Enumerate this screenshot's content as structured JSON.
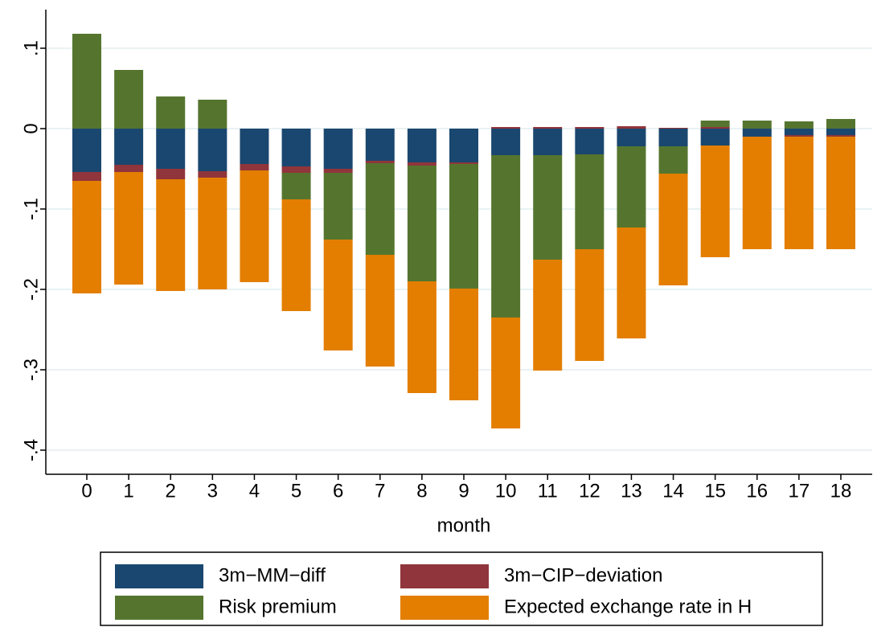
{
  "chart_data": {
    "type": "stacked_bar",
    "x_label": "month",
    "categories": [
      "0",
      "1",
      "2",
      "3",
      "4",
      "5",
      "6",
      "7",
      "8",
      "9",
      "10",
      "11",
      "12",
      "13",
      "14",
      "15",
      "16",
      "17",
      "18"
    ],
    "series": [
      {
        "name": "3m−MM−diff",
        "color": "#1a476f",
        "values": [
          -0.054,
          -0.045,
          -0.05,
          -0.053,
          -0.044,
          -0.047,
          -0.05,
          -0.04,
          -0.042,
          -0.042,
          -0.033,
          -0.033,
          -0.032,
          -0.022,
          -0.022,
          -0.021,
          -0.01,
          -0.008,
          -0.008
        ]
      },
      {
        "name": "3m−CIP−deviation",
        "color": "#90353b",
        "values": [
          -0.011,
          -0.009,
          -0.013,
          -0.008,
          -0.008,
          -0.008,
          -0.005,
          -0.003,
          -0.004,
          -0.002,
          0.002,
          0.002,
          0.002,
          0.003,
          0.001,
          0.002,
          0.0,
          -0.002,
          -0.002
        ]
      },
      {
        "name": "Risk premium",
        "color": "#55752f",
        "values": [
          0.118,
          0.073,
          0.04,
          0.036,
          0.0,
          -0.033,
          -0.083,
          -0.114,
          -0.144,
          -0.155,
          -0.202,
          -0.13,
          -0.118,
          -0.101,
          -0.034,
          0.008,
          0.01,
          0.009,
          0.012
        ]
      },
      {
        "name": "Expected exchange rate in H",
        "color": "#e37e00",
        "values": [
          -0.14,
          -0.14,
          -0.139,
          -0.139,
          -0.139,
          -0.139,
          -0.138,
          -0.139,
          -0.139,
          -0.139,
          -0.138,
          -0.138,
          -0.139,
          -0.138,
          -0.139,
          -0.139,
          -0.14,
          -0.14,
          -0.14
        ]
      }
    ],
    "ylim": [
      -0.43,
      0.148
    ],
    "yticks": [
      {
        "value": 0.1,
        "label": ".1"
      },
      0,
      {
        "value": -0.1,
        "label": "-.1"
      },
      {
        "value": -0.2,
        "label": "-.2"
      },
      {
        "value": -0.3,
        "label": "-.3"
      },
      {
        "value": -0.4,
        "label": "-.4"
      }
    ],
    "grid": true
  }
}
